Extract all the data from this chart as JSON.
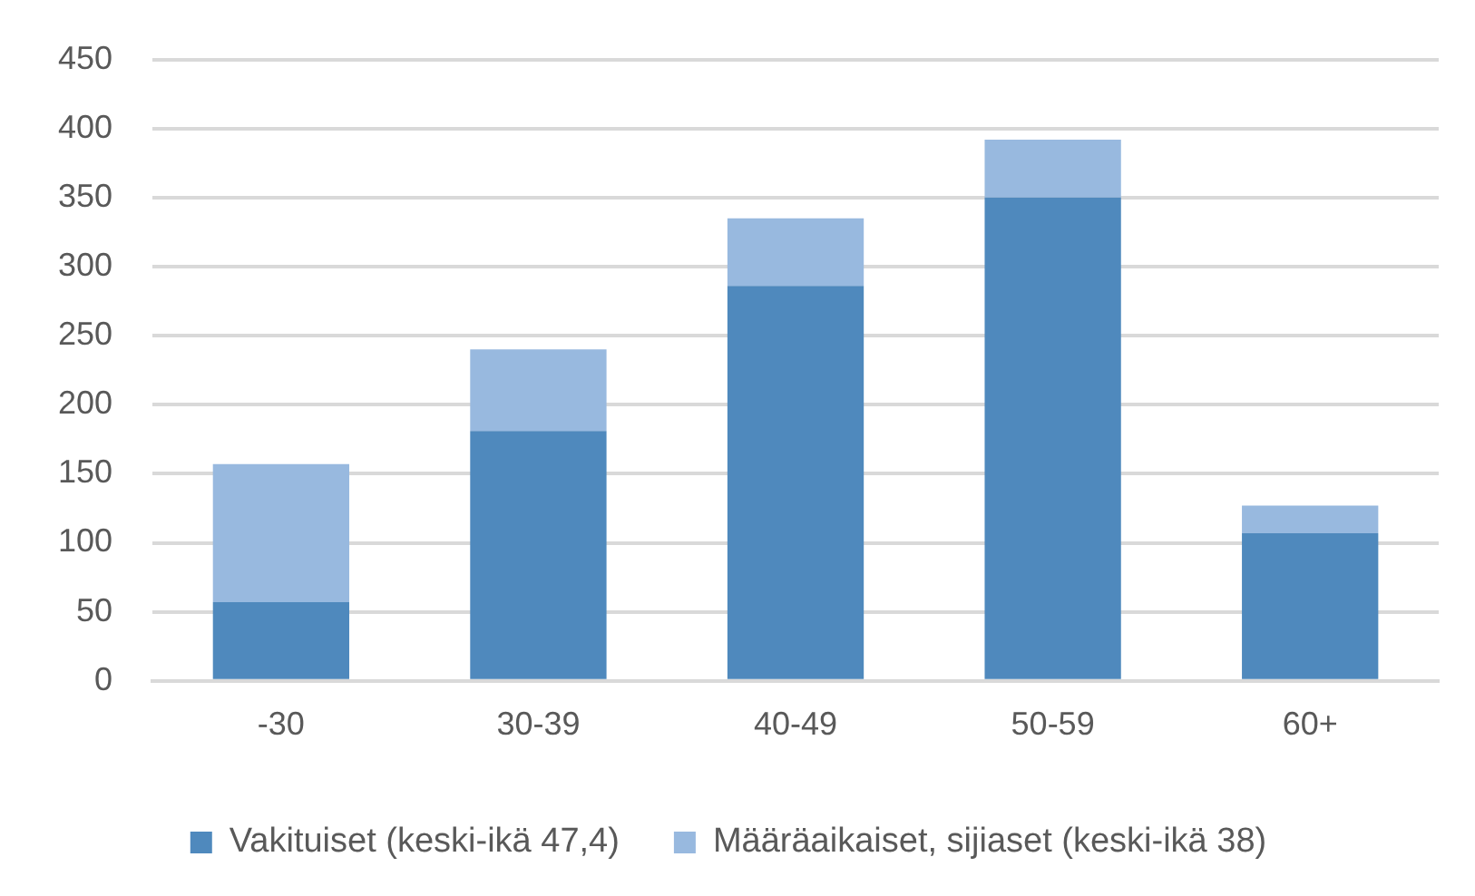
{
  "chart_data": {
    "type": "bar",
    "stacked": true,
    "categories": [
      "-30",
      "30-39",
      "40-49",
      "50-59",
      "60+"
    ],
    "series": [
      {
        "name": "Vakituiset (keski-ikä 47,4)",
        "color": "#4f89bd",
        "values": [
          57,
          181,
          286,
          350,
          107
        ]
      },
      {
        "name": "Määräaikaiset, sijiaset (keski-ikä 38)",
        "color": "#98b9df",
        "values": [
          100,
          59,
          49,
          42,
          20
        ]
      }
    ],
    "ylim": [
      0,
      450
    ],
    "yticks": [
      0,
      50,
      100,
      150,
      200,
      250,
      300,
      350,
      400,
      450
    ],
    "grid": "y",
    "legend": "bottom"
  }
}
